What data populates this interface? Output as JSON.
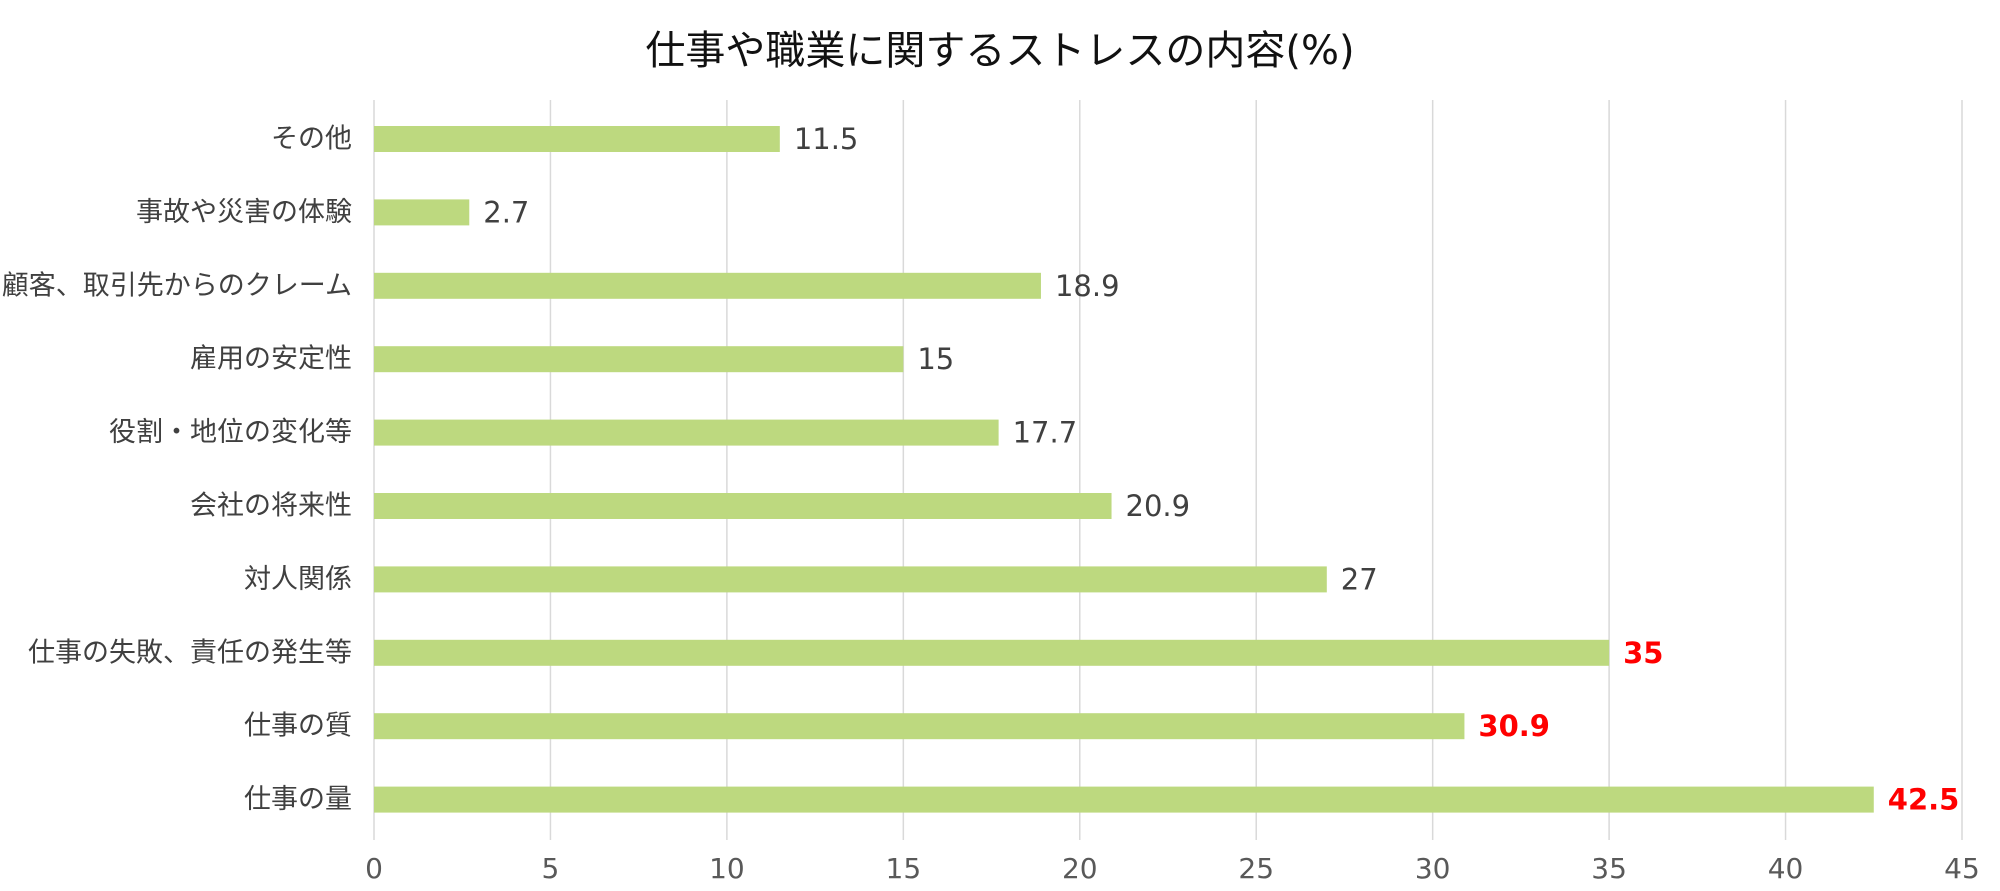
{
  "chart_data": {
    "type": "bar",
    "orientation": "horizontal",
    "title": "仕事や職業に関するストレスの内容(%)",
    "xlim": [
      0,
      45
    ],
    "x_ticks": [
      0,
      5,
      10,
      15,
      20,
      25,
      30,
      35,
      40,
      45
    ],
    "grid": "vertical",
    "categories": [
      "その他",
      "事故や災害の体験",
      "顧客、取引先からのクレーム",
      "雇用の安定性",
      "役割・地位の変化等",
      "会社の将来性",
      "対人関係",
      "仕事の失敗、責任の発生等",
      "仕事の質",
      "仕事の量"
    ],
    "values": [
      11.5,
      2.7,
      18.9,
      15,
      17.7,
      20.9,
      27,
      35,
      30.9,
      42.5
    ],
    "highlighted": [
      false,
      false,
      false,
      false,
      false,
      false,
      false,
      true,
      true,
      true
    ]
  },
  "colors": {
    "bar": "#bdd97f",
    "highlight_label": "#ff0000",
    "label": "#404040",
    "gridline": "#d9d9d9"
  }
}
